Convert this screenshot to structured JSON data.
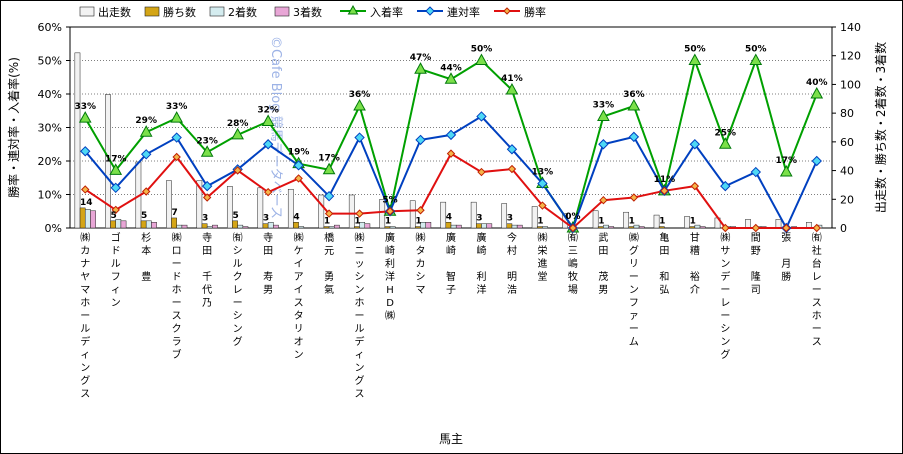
{
  "chart_data": {
    "type": "bar",
    "xlabel": "馬主",
    "ylabel_left": "勝率・連対率・入着率(%)",
    "ylabel_right": "出走数・勝ち数・2着数・3着数",
    "ylim_left": [
      0,
      60
    ],
    "ylim_right": [
      0,
      140
    ],
    "yticks_left": [
      "0%",
      "10%",
      "20%",
      "30%",
      "40%",
      "50%",
      "60%"
    ],
    "yticks_right": [
      "0",
      "20",
      "40",
      "60",
      "80",
      "100",
      "120",
      "140"
    ],
    "watermark": "©Cafe Blog 競馬データベース",
    "categories": [
      "㈱カナヤマホールディングス",
      "ゴドルフィン",
      "杉本 豊",
      "㈱ロードホースクラブ",
      "寺田 千代乃",
      "㈲シルクレーシング",
      "寺田 寿男",
      "㈱ケイアイスタリオン",
      "橋元 勇氣",
      "㈱ニッシンホールディングス",
      "廣崎利洋HD㈱",
      "㈱タカシマ",
      "廣崎 智子",
      "廣崎 利洋",
      "今村 明浩",
      "㈱栄進堂",
      "㈲三嶋牧場",
      "武田 茂男",
      "㈱グリーンファーム",
      "亀田 和弘",
      "甘糟 裕介",
      "㈱サンデーレーシング",
      "間野 隆司",
      "張 月勝",
      "㈲社台レースホース"
    ],
    "bar_series": [
      {
        "name": "出走数",
        "color": "#f2f2f2",
        "values": [
          122,
          93,
          46,
          33,
          33,
          29,
          28,
          27,
          23,
          23,
          20,
          19,
          18,
          18,
          17,
          15,
          10,
          12,
          11,
          9,
          8,
          7,
          6,
          6,
          4
        ]
      },
      {
        "name": "勝ち数",
        "color": "#d4a516",
        "values": [
          14,
          5,
          5,
          7,
          3,
          5,
          3,
          4,
          1,
          1,
          1,
          1,
          4,
          3,
          3,
          1,
          0,
          1,
          1,
          1,
          1,
          0,
          0,
          0,
          0
        ]
      },
      {
        "name": "2着数",
        "color": "#d4ecef",
        "values": [
          13,
          6,
          5,
          2,
          1,
          2,
          4,
          1,
          1,
          4,
          1,
          4,
          2,
          3,
          2,
          1,
          0,
          2,
          2,
          0,
          2,
          1,
          1,
          0,
          2
        ]
      },
      {
        "name": "3着数",
        "color": "#e8a6d6",
        "values": [
          12,
          5,
          4,
          2,
          2,
          1,
          2,
          0,
          2,
          3,
          0,
          4,
          2,
          3,
          2,
          0,
          0,
          1,
          1,
          0,
          1,
          1,
          1,
          1,
          0
        ]
      }
    ],
    "win_count_labels": [
      "14",
      "5",
      "5",
      "7",
      "3",
      "5",
      "3",
      "4",
      "1",
      "1",
      "1",
      "1",
      "4",
      "3",
      "3",
      "1",
      "",
      "1",
      "1",
      "1",
      "1",
      "",
      "",
      "",
      ""
    ],
    "line_series": [
      {
        "name": "入着率",
        "color": "#00a000",
        "values": [
          32.8,
          17.2,
          28.6,
          32.8,
          22.6,
          27.8,
          31.8,
          19.2,
          17.4,
          36.4,
          5.0,
          47.4,
          44.4,
          50.0,
          41.2,
          13.3,
          0.0,
          33.3,
          36.4,
          11.1,
          50.0,
          25.0,
          50.0,
          16.7,
          40.0
        ],
        "labels": [
          "33%",
          "17%",
          "29%",
          "33%",
          "23%",
          "28%",
          "32%",
          "19%",
          "17%",
          "36%",
          "5%",
          "47%",
          "44%",
          "50%",
          "41%",
          "13%",
          "0%",
          "33%",
          "36%",
          "11%",
          "50%",
          "25%",
          "50%",
          "17%",
          "40%"
        ]
      },
      {
        "name": "連対率",
        "color": "#0040c0",
        "values": [
          22.9,
          12.0,
          22.0,
          27.0,
          12.5,
          17.5,
          25.0,
          18.7,
          9.5,
          27.0,
          5.0,
          26.3,
          27.8,
          33.3,
          23.5,
          13.3,
          0.0,
          25.0,
          27.2,
          11.1,
          25.0,
          12.5,
          16.7,
          0.0,
          20.0
        ]
      },
      {
        "name": "勝率",
        "color": "#e01010",
        "values": [
          11.5,
          5.4,
          10.9,
          21.2,
          9.1,
          17.2,
          10.7,
          14.8,
          4.3,
          4.3,
          5.0,
          5.3,
          22.2,
          16.7,
          17.6,
          6.7,
          0.0,
          8.3,
          9.1,
          11.1,
          12.5,
          0.0,
          0.0,
          0.0,
          0.0
        ]
      }
    ]
  }
}
